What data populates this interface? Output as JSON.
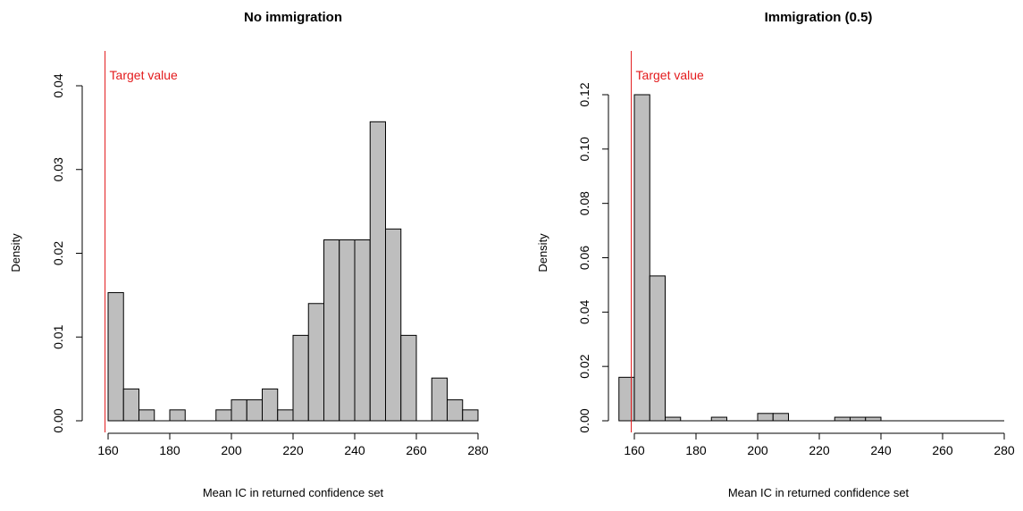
{
  "chart_data": [
    {
      "type": "bar",
      "title": "No immigration",
      "xlabel": "Mean IC in returned confidence set",
      "ylabel": "Density",
      "xlim": [
        160,
        280
      ],
      "ylim": [
        0,
        0.04
      ],
      "x_ticks": [
        160,
        180,
        200,
        220,
        240,
        260,
        280
      ],
      "y_ticks": [
        0.0,
        0.01,
        0.02,
        0.03,
        0.04
      ],
      "y_tick_labels": [
        "0.00",
        "0.01",
        "0.02",
        "0.03",
        "0.04"
      ],
      "bin_width": 5,
      "bin_starts": [
        160,
        165,
        170,
        175,
        180,
        185,
        190,
        195,
        200,
        205,
        210,
        215,
        220,
        225,
        230,
        235,
        240,
        245,
        250,
        255,
        260,
        265,
        270,
        275
      ],
      "values": [
        0.0153,
        0.0038,
        0.0013,
        0.0,
        0.0013,
        0.0,
        0.0,
        0.0013,
        0.0025,
        0.0025,
        0.0038,
        0.0013,
        0.0102,
        0.014,
        0.0216,
        0.0216,
        0.0216,
        0.0357,
        0.0229,
        0.0102,
        0.0,
        0.0051,
        0.0025,
        0.0013
      ],
      "reference_line": {
        "x": 159,
        "label": "Target value",
        "color": "#e31a1c"
      },
      "bar_color": "#bebebe",
      "grid": false
    },
    {
      "type": "bar",
      "title": "Immigration (0.5)",
      "xlabel": "Mean IC in returned confidence set",
      "ylabel": "Density",
      "xlim": [
        160,
        280
      ],
      "ylim": [
        0,
        0.12
      ],
      "x_ticks": [
        160,
        180,
        200,
        220,
        240,
        260,
        280
      ],
      "y_ticks": [
        0.0,
        0.02,
        0.04,
        0.06,
        0.08,
        0.1,
        0.12
      ],
      "y_tick_labels": [
        "0.00",
        "0.02",
        "0.04",
        "0.06",
        "0.08",
        "0.10",
        "0.12"
      ],
      "bin_width": 5,
      "bin_starts": [
        155,
        160,
        165,
        170,
        175,
        180,
        185,
        190,
        195,
        200,
        205,
        210,
        215,
        220,
        225,
        230,
        235
      ],
      "values": [
        0.016,
        0.12,
        0.0533,
        0.0013,
        0.0,
        0.0,
        0.0013,
        0.0,
        0.0,
        0.0027,
        0.0027,
        0.0,
        0.0,
        0.0,
        0.0013,
        0.0013,
        0.0013
      ],
      "reference_line": {
        "x": 159,
        "label": "Target value",
        "color": "#e31a1c"
      },
      "bar_color": "#bebebe",
      "grid": false
    }
  ]
}
